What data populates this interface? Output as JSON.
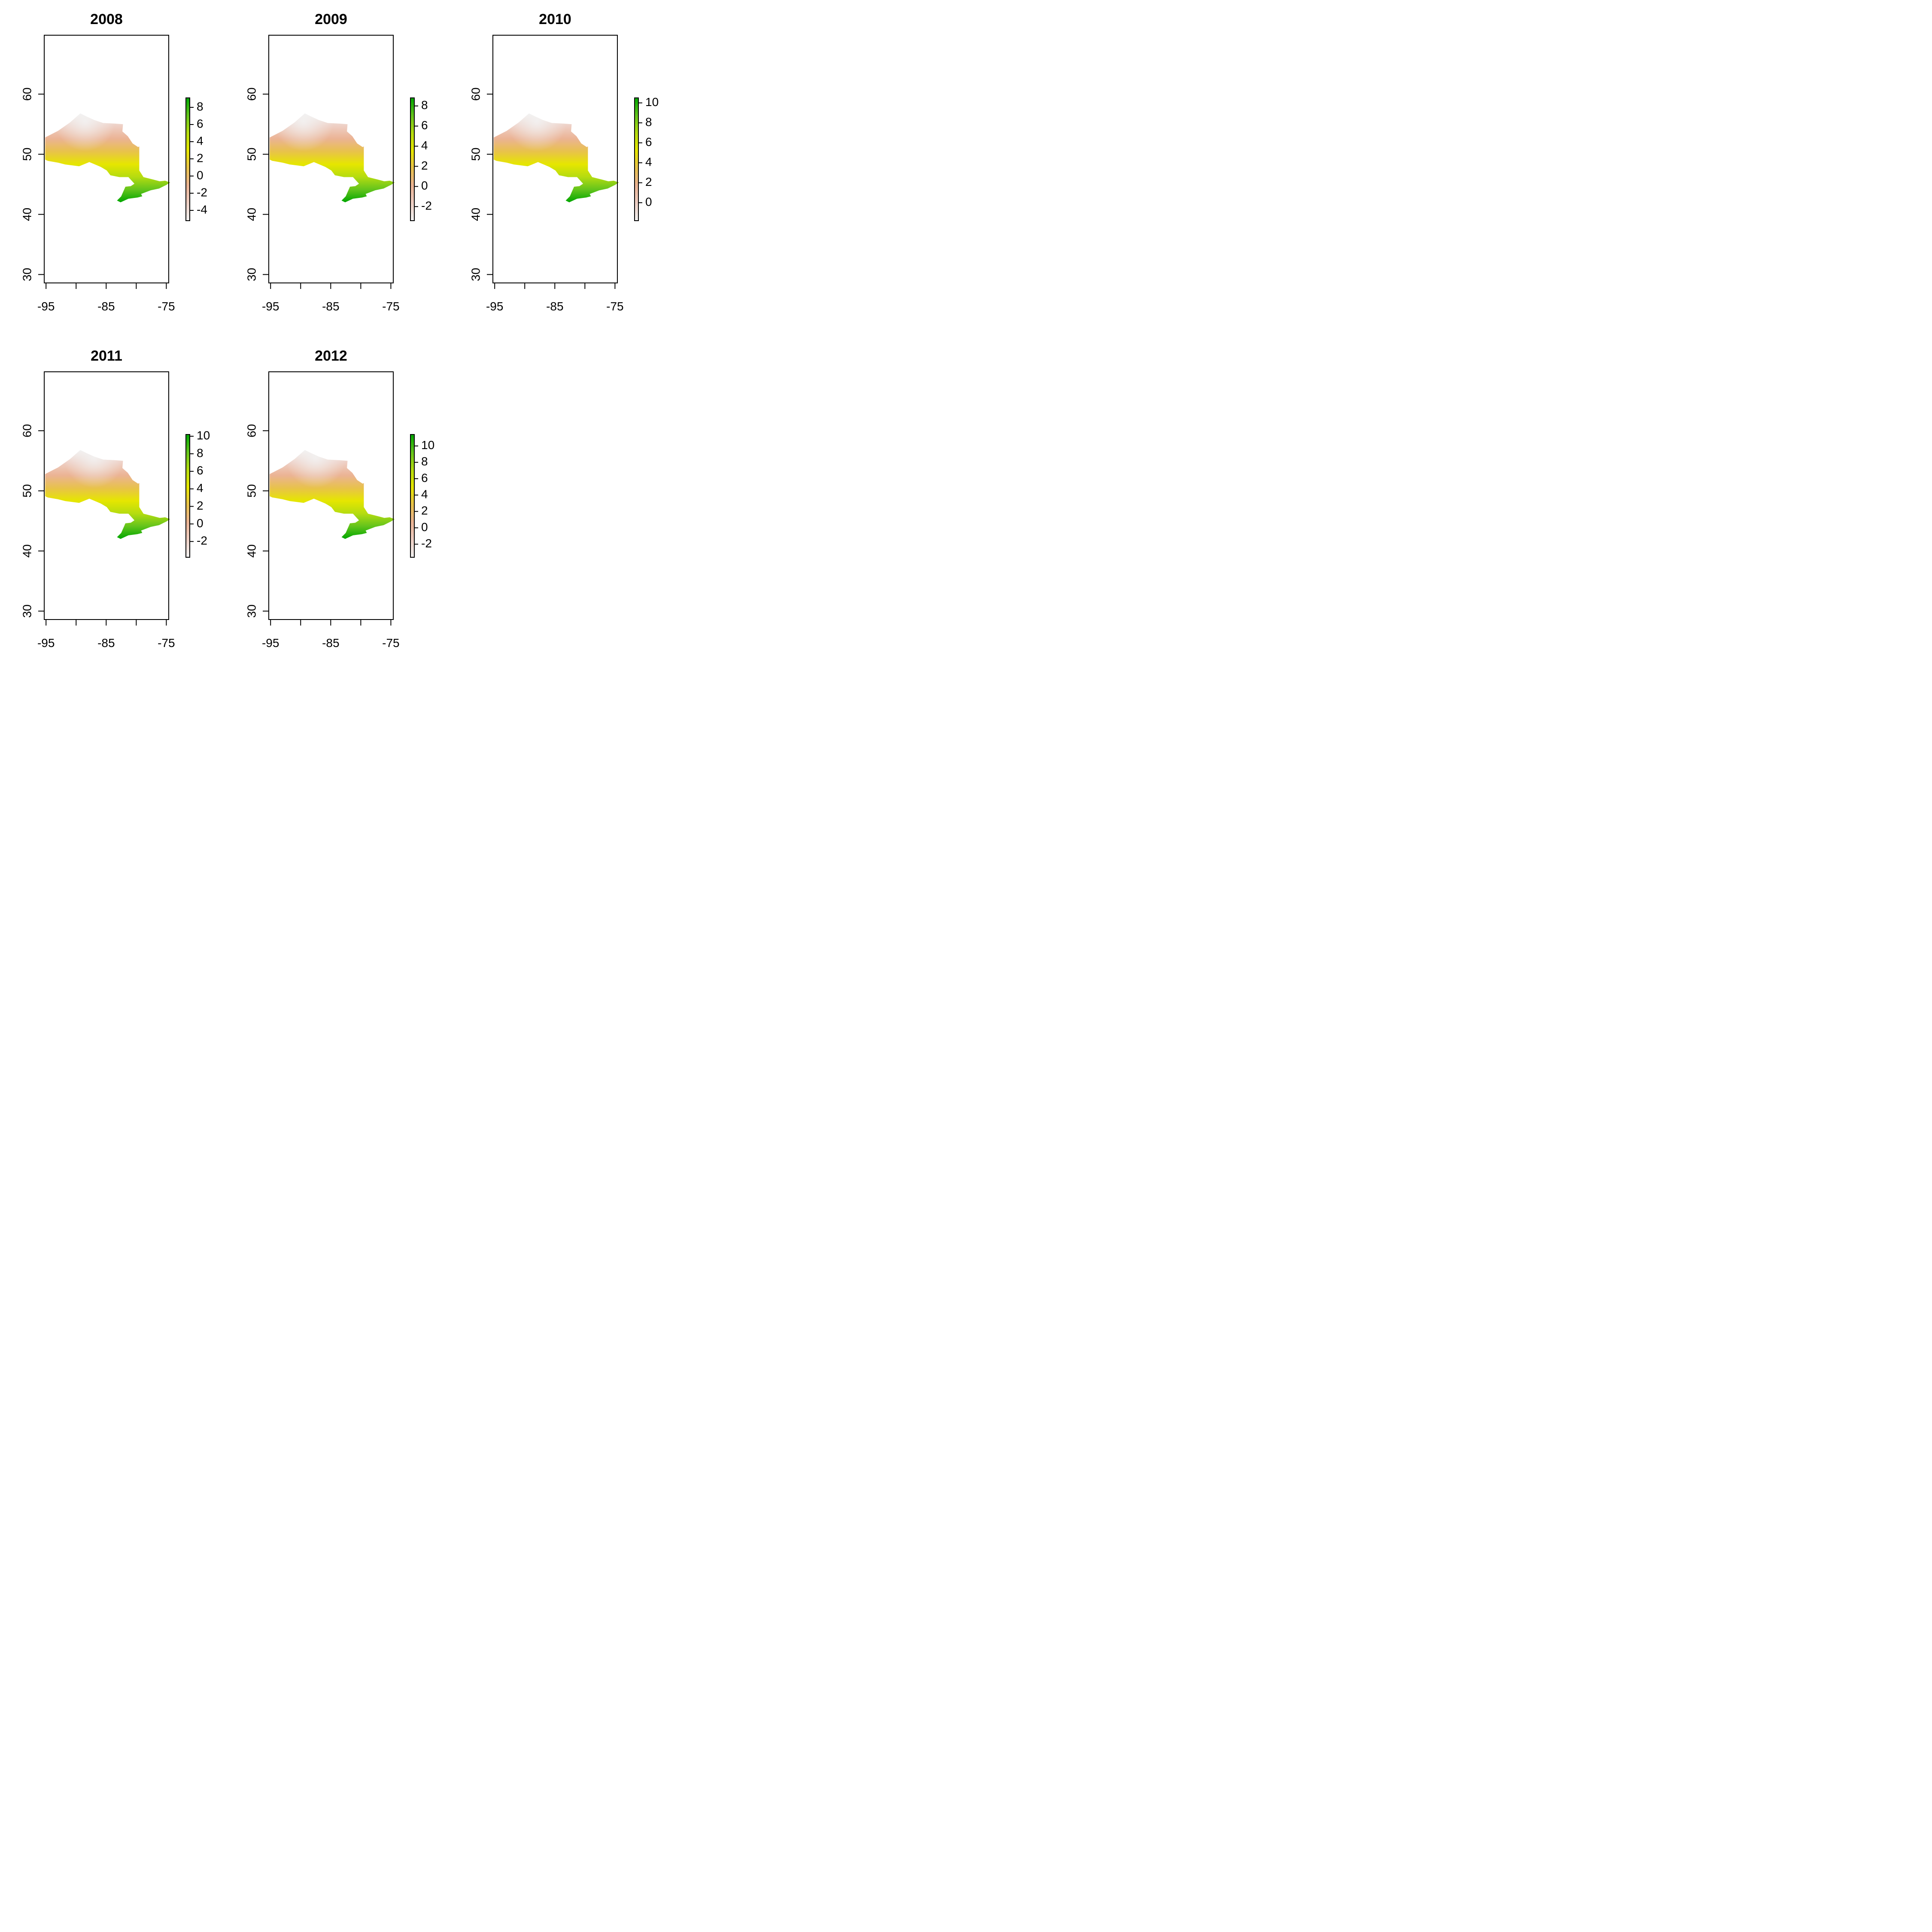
{
  "chart_data": [
    {
      "type": "heatmap",
      "title": "2008",
      "xlabel": "",
      "ylabel": "",
      "xlim": [
        -95.3,
        -74.6
      ],
      "ylim": [
        28.6,
        69.8
      ],
      "x_ticks": [
        -95,
        -90,
        -85,
        -80,
        -75
      ],
      "x_tick_labels": [
        "-95",
        "-85",
        "-75"
      ],
      "y_ticks": [
        30,
        40,
        50,
        60
      ],
      "y_tick_labels": [
        "30",
        "40",
        "50",
        "60"
      ],
      "value_range": [
        -5.2,
        9.1
      ],
      "colorbar_ticks": [
        "-4",
        "-2",
        "0",
        "2",
        "4",
        "6",
        "8"
      ],
      "gradient": {
        "north_value": -5.2,
        "south_value": 9.1,
        "cold_spot_lon": -88.5
      }
    },
    {
      "type": "heatmap",
      "title": "2009",
      "xlabel": "",
      "ylabel": "",
      "xlim": [
        -95.3,
        -74.6
      ],
      "ylim": [
        28.6,
        69.8
      ],
      "x_ticks": [
        -95,
        -90,
        -85,
        -80,
        -75
      ],
      "x_tick_labels": [
        "-95",
        "-85",
        "-75"
      ],
      "y_ticks": [
        30,
        40,
        50,
        60
      ],
      "y_tick_labels": [
        "30",
        "40",
        "50",
        "60"
      ],
      "value_range": [
        -3.4,
        8.8
      ],
      "colorbar_ticks": [
        "-2",
        "0",
        "2",
        "4",
        "6",
        "8"
      ],
      "gradient": {
        "north_value": -3.4,
        "south_value": 8.8,
        "cold_spot_lon": -89.5
      }
    },
    {
      "type": "heatmap",
      "title": "2010",
      "xlabel": "",
      "ylabel": "",
      "xlim": [
        -95.3,
        -74.6
      ],
      "ylim": [
        28.6,
        69.8
      ],
      "x_ticks": [
        -95,
        -90,
        -85,
        -80,
        -75
      ],
      "x_tick_labels": [
        "-95",
        "-85",
        "-75"
      ],
      "y_ticks": [
        30,
        40,
        50,
        60
      ],
      "y_tick_labels": [
        "30",
        "40",
        "50",
        "60"
      ],
      "value_range": [
        -1.8,
        10.5
      ],
      "colorbar_ticks": [
        "0",
        "2",
        "4",
        "6",
        "8",
        "10"
      ],
      "gradient": {
        "north_value": -1.8,
        "south_value": 10.5,
        "cold_spot_lon": -88.0
      }
    },
    {
      "type": "heatmap",
      "title": "2011",
      "xlabel": "",
      "ylabel": "",
      "xlim": [
        -95.3,
        -74.6
      ],
      "ylim": [
        28.6,
        69.8
      ],
      "x_ticks": [
        -95,
        -90,
        -85,
        -80,
        -75
      ],
      "x_tick_labels": [
        "-95",
        "-85",
        "-75"
      ],
      "y_ticks": [
        30,
        40,
        50,
        60
      ],
      "y_tick_labels": [
        "30",
        "40",
        "50",
        "60"
      ],
      "value_range": [
        -3.8,
        10.2
      ],
      "colorbar_ticks": [
        "-2",
        "0",
        "2",
        "4",
        "6",
        "8",
        "10"
      ],
      "gradient": {
        "north_value": -3.8,
        "south_value": 10.2,
        "cold_spot_lon": -87.0
      }
    },
    {
      "type": "heatmap",
      "title": "2012",
      "xlabel": "",
      "ylabel": "",
      "xlim": [
        -95.3,
        -74.6
      ],
      "ylim": [
        28.6,
        69.8
      ],
      "x_ticks": [
        -95,
        -90,
        -85,
        -80,
        -75
      ],
      "x_tick_labels": [
        "-95",
        "-85",
        "-75"
      ],
      "y_ticks": [
        30,
        40,
        50,
        60
      ],
      "y_tick_labels": [
        "30",
        "40",
        "50",
        "60"
      ],
      "value_range": [
        -3.6,
        11.4
      ],
      "colorbar_ticks": [
        "-2",
        "0",
        "2",
        "4",
        "6",
        "8",
        "10"
      ],
      "gradient": {
        "north_value": -3.6,
        "south_value": 11.4,
        "cold_spot_lon": -87.5
      }
    }
  ],
  "colors": {
    "palette": [
      "#f2f2f2",
      "#eecfc4",
      "#ebb394",
      "#e8c24a",
      "#e6e600",
      "#b5dc10",
      "#63c41c",
      "#00a600"
    ],
    "frame": "#000000",
    "background": "#ffffff"
  },
  "region_outline": [
    [
      -95.15,
      52.8
    ],
    [
      -93.0,
      53.9
    ],
    [
      -91.0,
      55.3
    ],
    [
      -89.3,
      56.8
    ],
    [
      -88.3,
      56.3
    ],
    [
      -87.0,
      55.7
    ],
    [
      -85.5,
      55.2
    ],
    [
      -83.5,
      55.1
    ],
    [
      -82.2,
      55.0
    ],
    [
      -82.3,
      53.8
    ],
    [
      -81.4,
      53.0
    ],
    [
      -80.6,
      51.8
    ],
    [
      -79.7,
      51.2
    ],
    [
      -79.5,
      51.3
    ],
    [
      -79.5,
      47.3
    ],
    [
      -78.8,
      46.2
    ],
    [
      -77.2,
      45.8
    ],
    [
      -76.1,
      45.5
    ],
    [
      -75.2,
      45.6
    ],
    [
      -74.35,
      45.3
    ],
    [
      -75.0,
      44.9
    ],
    [
      -76.2,
      44.3
    ],
    [
      -77.6,
      44.0
    ],
    [
      -79.2,
      43.4
    ],
    [
      -79.0,
      43.0
    ],
    [
      -79.8,
      42.8
    ],
    [
      -81.3,
      42.6
    ],
    [
      -82.6,
      42.0
    ],
    [
      -83.2,
      42.3
    ],
    [
      -82.5,
      43.0
    ],
    [
      -81.8,
      44.6
    ],
    [
      -80.9,
      44.7
    ],
    [
      -80.3,
      45.1
    ],
    [
      -81.3,
      46.2
    ],
    [
      -82.8,
      46.2
    ],
    [
      -84.3,
      46.5
    ],
    [
      -84.9,
      47.3
    ],
    [
      -85.9,
      47.9
    ],
    [
      -87.8,
      48.7
    ],
    [
      -89.5,
      48.0
    ],
    [
      -91.8,
      48.3
    ],
    [
      -93.0,
      48.6
    ],
    [
      -94.7,
      48.9
    ],
    [
      -95.15,
      49.1
    ]
  ]
}
